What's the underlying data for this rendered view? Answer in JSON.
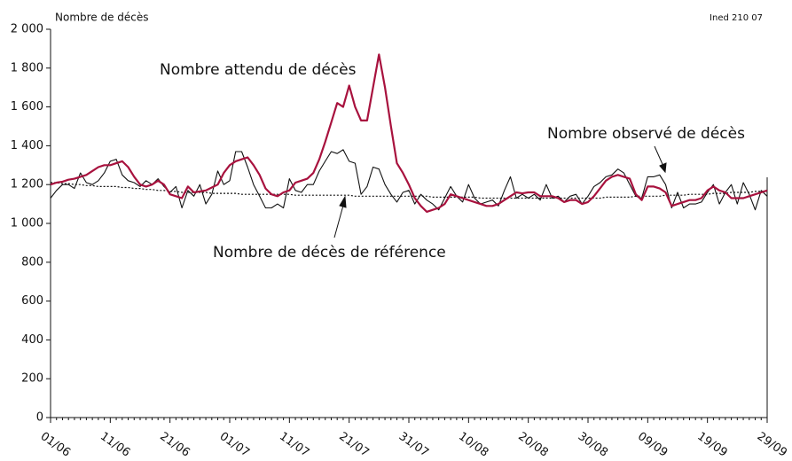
{
  "chart_data": {
    "type": "line",
    "y_label": "Nombre de décès",
    "source": "Ined 210 07",
    "categories": [
      "01/06",
      null,
      null,
      null,
      null,
      null,
      null,
      null,
      null,
      null,
      "11/06",
      null,
      null,
      null,
      null,
      null,
      null,
      null,
      null,
      null,
      "21/06",
      null,
      null,
      null,
      null,
      null,
      null,
      null,
      null,
      null,
      "01/07",
      null,
      null,
      null,
      null,
      null,
      null,
      null,
      null,
      null,
      "11/07",
      null,
      null,
      null,
      null,
      null,
      null,
      null,
      null,
      null,
      "21/07",
      null,
      null,
      null,
      null,
      null,
      null,
      null,
      null,
      null,
      "31/07",
      null,
      null,
      null,
      null,
      null,
      null,
      null,
      null,
      null,
      "10/08",
      null,
      null,
      null,
      null,
      null,
      null,
      null,
      null,
      null,
      "20/08",
      null,
      null,
      null,
      null,
      null,
      null,
      null,
      null,
      null,
      "30/08",
      null,
      null,
      null,
      null,
      null,
      null,
      null,
      null,
      null,
      "09/09",
      null,
      null,
      null,
      null,
      null,
      null,
      null,
      null,
      null,
      "19/09",
      null,
      null,
      null,
      null,
      null,
      null,
      null,
      null,
      null,
      "29/09"
    ],
    "series": [
      {
        "name": "Nombre attendu de décès",
        "color": "#a8123e",
        "style": "thick",
        "values": [
          1200,
          1210,
          1215,
          1225,
          1230,
          1240,
          1250,
          1270,
          1290,
          1300,
          1300,
          1310,
          1320,
          1290,
          1240,
          1200,
          1190,
          1200,
          1220,
          1200,
          1150,
          1140,
          1130,
          1190,
          1160,
          1165,
          1170,
          1185,
          1200,
          1260,
          1300,
          1320,
          1330,
          1340,
          1300,
          1250,
          1180,
          1150,
          1140,
          1160,
          1170,
          1210,
          1220,
          1230,
          1260,
          1330,
          1420,
          1520,
          1620,
          1600,
          1710,
          1600,
          1530,
          1530,
          1700,
          1870,
          1700,
          1500,
          1310,
          1260,
          1200,
          1130,
          1090,
          1060,
          1070,
          1080,
          1100,
          1150,
          1140,
          1130,
          1120,
          1110,
          1100,
          1090,
          1090,
          1100,
          1120,
          1140,
          1160,
          1155,
          1160,
          1160,
          1140,
          1140,
          1140,
          1130,
          1110,
          1120,
          1120,
          1100,
          1110,
          1140,
          1180,
          1220,
          1240,
          1250,
          1240,
          1230,
          1150,
          1120,
          1190,
          1190,
          1180,
          1160,
          1090,
          1100,
          1110,
          1120,
          1120,
          1130,
          1170,
          1190,
          1170,
          1160,
          1130,
          1130,
          1130,
          1140,
          1150,
          1160,
          1170
        ]
      },
      {
        "name": "Nombre observé de décès",
        "color": "#111111",
        "style": "thin",
        "values": [
          1130,
          1170,
          1200,
          1200,
          1180,
          1260,
          1210,
          1200,
          1220,
          1260,
          1320,
          1330,
          1250,
          1220,
          1210,
          1190,
          1220,
          1200,
          1230,
          1190,
          1160,
          1190,
          1080,
          1170,
          1140,
          1200,
          1100,
          1150,
          1270,
          1200,
          1220,
          1370,
          1370,
          1290,
          1200,
          1140,
          1080,
          1080,
          1100,
          1080,
          1230,
          1170,
          1160,
          1200,
          1200,
          1270,
          1320,
          1370,
          1360,
          1380,
          1320,
          1310,
          1150,
          1190,
          1290,
          1280,
          1200,
          1150,
          1110,
          1160,
          1170,
          1100,
          1150,
          1120,
          1100,
          1070,
          1130,
          1190,
          1140,
          1110,
          1200,
          1130,
          1100,
          1110,
          1120,
          1090,
          1170,
          1240,
          1130,
          1150,
          1130,
          1150,
          1120,
          1200,
          1130,
          1140,
          1110,
          1140,
          1150,
          1100,
          1140,
          1190,
          1210,
          1240,
          1250,
          1280,
          1260,
          1200,
          1140,
          1130,
          1240,
          1240,
          1250,
          1200,
          1080,
          1160,
          1080,
          1100,
          1100,
          1110,
          1160,
          1200,
          1100,
          1160,
          1200,
          1100,
          1210,
          1150,
          1070,
          1170,
          1140
        ]
      },
      {
        "name": "Nombre de décès de référence",
        "color": "#111111",
        "style": "dotted",
        "values": [
          1210,
          1210,
          1205,
          1205,
          1200,
          1200,
          1195,
          1195,
          1190,
          1190,
          1190,
          1190,
          1185,
          1185,
          1180,
          1180,
          1175,
          1175,
          1170,
          1170,
          1165,
          1165,
          1160,
          1160,
          1160,
          1160,
          1160,
          1155,
          1155,
          1155,
          1155,
          1155,
          1150,
          1150,
          1150,
          1150,
          1150,
          1150,
          1150,
          1150,
          1150,
          1145,
          1145,
          1145,
          1145,
          1145,
          1145,
          1145,
          1145,
          1145,
          1145,
          1140,
          1140,
          1140,
          1140,
          1140,
          1140,
          1140,
          1140,
          1140,
          1140,
          1140,
          1140,
          1140,
          1135,
          1135,
          1135,
          1135,
          1135,
          1135,
          1135,
          1135,
          1130,
          1130,
          1130,
          1130,
          1130,
          1130,
          1130,
          1130,
          1130,
          1130,
          1130,
          1130,
          1130,
          1130,
          1130,
          1130,
          1130,
          1130,
          1130,
          1130,
          1130,
          1135,
          1135,
          1135,
          1135,
          1135,
          1140,
          1140,
          1140,
          1140,
          1140,
          1145,
          1145,
          1145,
          1145,
          1150,
          1150,
          1150,
          1150,
          1155,
          1155,
          1155,
          1160,
          1160,
          1160,
          1160,
          1165,
          1165,
          1165
        ]
      }
    ],
    "ylim": [
      0,
      2000
    ],
    "yticks": [
      0,
      {
        "value": 200,
        "label": "200"
      },
      {
        "value": 400,
        "label": "400"
      },
      {
        "value": 600,
        "label": "600"
      },
      {
        "value": 800,
        "label": "800"
      },
      {
        "value": 1000,
        "label": "1 000"
      },
      {
        "value": 1200,
        "label": "1 200"
      },
      {
        "value": 1400,
        "label": "1 400"
      },
      {
        "value": 1600,
        "label": "1 600"
      },
      {
        "value": 1800,
        "label": "1 800"
      },
      {
        "value": 2000,
        "label": "2 000"
      }
    ],
    "grid": false
  }
}
